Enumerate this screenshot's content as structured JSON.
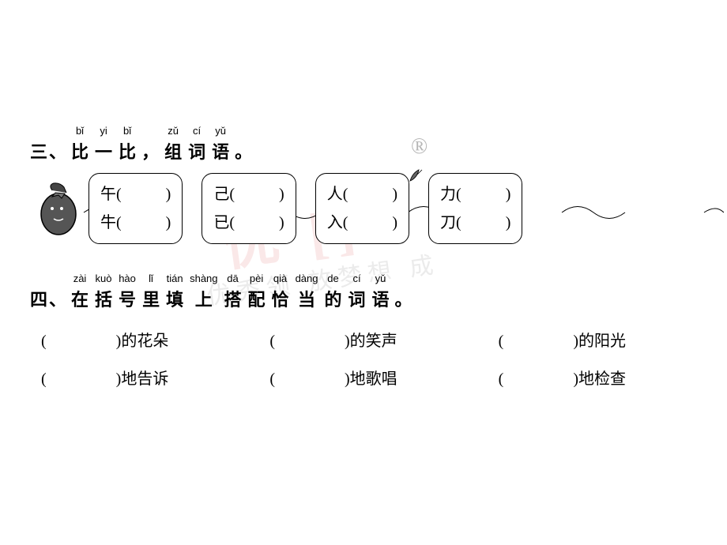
{
  "watermark": {
    "line1": "优 []",
    "line2": "优秀领 放梦想 成",
    "reg": "®"
  },
  "section3": {
    "number": "三、",
    "title_chars": [
      {
        "pinyin": "bǐ",
        "hanzi": "比"
      },
      {
        "pinyin": "yi",
        "hanzi": "一"
      },
      {
        "pinyin": "bǐ",
        "hanzi": "比"
      }
    ],
    "comma": "，",
    "title_chars2": [
      {
        "pinyin": "zǔ",
        "hanzi": "组"
      },
      {
        "pinyin": "cí",
        "hanzi": "词"
      },
      {
        "pinyin": "yǔ",
        "hanzi": "语"
      }
    ],
    "period": "。",
    "boxes": [
      {
        "top": "午",
        "bottom": "牛"
      },
      {
        "top": "己",
        "bottom": "已"
      },
      {
        "top": "人",
        "bottom": "入"
      },
      {
        "top": "力",
        "bottom": "刀"
      }
    ],
    "paren_open": "(",
    "paren_close": ")"
  },
  "section4": {
    "number": "四、",
    "title_chars": [
      {
        "pinyin": "zài",
        "hanzi": "在"
      },
      {
        "pinyin": "kuò",
        "hanzi": "括"
      },
      {
        "pinyin": "hào",
        "hanzi": "号"
      },
      {
        "pinyin": "lǐ",
        "hanzi": "里"
      },
      {
        "pinyin": "tián",
        "hanzi": "填"
      },
      {
        "pinyin": "shàng",
        "hanzi": "上"
      },
      {
        "pinyin": "dā",
        "hanzi": "搭"
      },
      {
        "pinyin": "pèi",
        "hanzi": "配"
      },
      {
        "pinyin": "qià",
        "hanzi": "恰"
      },
      {
        "pinyin": "dàng",
        "hanzi": "当"
      },
      {
        "pinyin": "de",
        "hanzi": "的"
      },
      {
        "pinyin": "cí",
        "hanzi": "词"
      },
      {
        "pinyin": "yǔ",
        "hanzi": "语"
      }
    ],
    "period": "。",
    "row1": [
      {
        "suffix": "的花朵"
      },
      {
        "suffix": "的笑声"
      },
      {
        "suffix": "的阳光"
      }
    ],
    "row2": [
      {
        "suffix": "地告诉"
      },
      {
        "suffix": "地歌唱"
      },
      {
        "suffix": "地检查"
      }
    ],
    "paren_open": "(",
    "paren_close": ")"
  }
}
